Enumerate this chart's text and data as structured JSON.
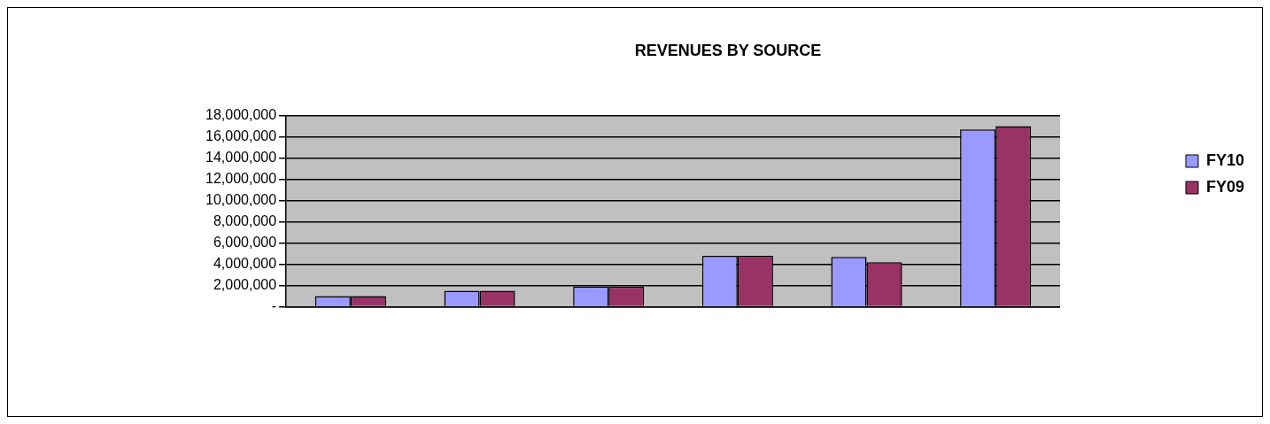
{
  "chart_data": {
    "type": "bar",
    "title": "REVENUES BY SOURCE",
    "categories": [
      null,
      null,
      null,
      null,
      null,
      null
    ],
    "series": [
      {
        "name": "FY10",
        "color": "#9999ff",
        "values": [
          1000000,
          1500000,
          1900000,
          4800000,
          4700000,
          16700000
        ]
      },
      {
        "name": "FY09",
        "color": "#993366",
        "values": [
          1000000,
          1500000,
          1900000,
          4800000,
          4200000,
          17000000
        ]
      }
    ],
    "ylim": [
      0,
      18000000
    ],
    "yticks": [
      {
        "value": 0,
        "label": "-"
      },
      {
        "value": 2000000,
        "label": "2,000,000"
      },
      {
        "value": 4000000,
        "label": "4,000,000"
      },
      {
        "value": 6000000,
        "label": "6,000,000"
      },
      {
        "value": 8000000,
        "label": "8,000,000"
      },
      {
        "value": 10000000,
        "label": "10,000,000"
      },
      {
        "value": 12000000,
        "label": "12,000,000"
      },
      {
        "value": 14000000,
        "label": "14,000,000"
      },
      {
        "value": 16000000,
        "label": "16,000,000"
      },
      {
        "value": 18000000,
        "label": "18,000,000"
      }
    ],
    "grid": "y",
    "legend": "right"
  }
}
